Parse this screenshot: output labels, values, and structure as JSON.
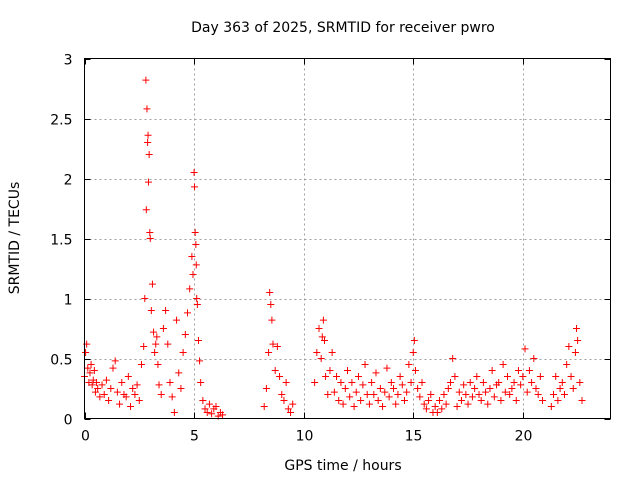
{
  "chart_data": {
    "type": "scatter",
    "title": "Day 363 of 2025, SRMTID for receiver pwro",
    "xlabel": "GPS time / hours",
    "ylabel": "SRMTID / TECUs",
    "xlim": [
      0,
      24
    ],
    "ylim": [
      0,
      3
    ],
    "xticks": [
      0,
      5,
      10,
      15,
      20
    ],
    "xtick_labels": [
      "0",
      "5",
      "10",
      "15",
      "20"
    ],
    "yticks": [
      0,
      0.5,
      1,
      1.5,
      2,
      2.5,
      3
    ],
    "ytick_labels": [
      "0",
      "0.5",
      "1",
      "1.5",
      "2",
      "2.5",
      "3"
    ],
    "grid": true,
    "marker": "+",
    "color": "#ff0000",
    "series": [
      {
        "name": "SRMTID",
        "x": [
          0.0,
          0.05,
          0.1,
          0.15,
          0.2,
          0.25,
          0.3,
          0.35,
          0.4,
          0.45,
          0.5,
          0.55,
          0.6,
          0.7,
          0.8,
          0.9,
          1.0,
          1.1,
          1.2,
          1.3,
          1.4,
          1.5,
          1.6,
          1.7,
          1.8,
          1.9,
          2.0,
          2.1,
          2.2,
          2.3,
          2.4,
          2.5,
          2.6,
          2.7,
          2.75,
          2.8,
          2.82,
          2.85,
          2.88,
          2.9,
          2.92,
          2.95,
          2.98,
          3.0,
          3.05,
          3.1,
          3.15,
          3.2,
          3.25,
          3.3,
          3.35,
          3.4,
          3.5,
          3.6,
          3.7,
          3.8,
          3.9,
          4.0,
          4.1,
          4.2,
          4.3,
          4.4,
          4.5,
          4.6,
          4.7,
          4.8,
          4.9,
          4.95,
          5.0,
          5.02,
          5.05,
          5.08,
          5.1,
          5.12,
          5.15,
          5.2,
          5.25,
          5.3,
          5.4,
          5.5,
          5.6,
          5.7,
          5.8,
          5.9,
          6.0,
          6.1,
          6.2,
          6.3,
          8.2,
          8.3,
          8.4,
          8.45,
          8.5,
          8.55,
          8.6,
          8.7,
          8.8,
          8.9,
          9.0,
          9.1,
          9.2,
          9.3,
          9.4,
          9.5,
          10.5,
          10.6,
          10.7,
          10.8,
          10.85,
          10.9,
          10.95,
          11.0,
          11.1,
          11.2,
          11.3,
          11.4,
          11.5,
          11.6,
          11.7,
          11.8,
          11.9,
          12.0,
          12.1,
          12.2,
          12.3,
          12.4,
          12.5,
          12.6,
          12.7,
          12.8,
          12.9,
          13.0,
          13.1,
          13.2,
          13.3,
          13.4,
          13.5,
          13.6,
          13.7,
          13.8,
          13.9,
          14.0,
          14.1,
          14.2,
          14.3,
          14.4,
          14.5,
          14.6,
          14.7,
          14.8,
          14.9,
          15.0,
          15.05,
          15.1,
          15.2,
          15.3,
          15.4,
          15.5,
          15.6,
          15.7,
          15.8,
          15.9,
          16.0,
          16.1,
          16.2,
          16.3,
          16.4,
          16.5,
          16.6,
          16.7,
          16.8,
          16.9,
          17.0,
          17.1,
          17.2,
          17.3,
          17.4,
          17.5,
          17.6,
          17.7,
          17.8,
          17.9,
          18.0,
          18.1,
          18.2,
          18.3,
          18.4,
          18.5,
          18.6,
          18.7,
          18.8,
          18.9,
          19.0,
          19.1,
          19.2,
          19.3,
          19.4,
          19.5,
          19.6,
          19.7,
          19.8,
          19.9,
          20.0,
          20.1,
          20.2,
          20.3,
          20.4,
          20.5,
          20.6,
          20.7,
          20.8,
          20.9,
          21.3,
          21.4,
          21.5,
          21.6,
          21.7,
          21.8,
          21.9,
          22.0,
          22.1,
          22.2,
          22.3,
          22.4,
          22.45,
          22.5,
          22.6,
          22.7
        ],
        "y": [
          0.35,
          0.55,
          0.62,
          0.42,
          0.3,
          0.38,
          0.45,
          0.28,
          0.32,
          0.4,
          0.22,
          0.3,
          0.25,
          0.18,
          0.28,
          0.2,
          0.32,
          0.15,
          0.25,
          0.42,
          0.48,
          0.22,
          0.12,
          0.3,
          0.2,
          0.18,
          0.35,
          0.1,
          0.25,
          0.2,
          0.28,
          0.15,
          0.45,
          0.6,
          1.0,
          2.82,
          1.74,
          2.58,
          2.3,
          2.36,
          1.97,
          2.2,
          1.55,
          1.5,
          0.9,
          1.12,
          0.72,
          0.55,
          0.62,
          0.68,
          0.45,
          0.28,
          0.2,
          0.75,
          0.9,
          0.62,
          0.3,
          0.18,
          0.05,
          0.82,
          0.38,
          0.25,
          0.55,
          0.7,
          0.88,
          1.08,
          1.35,
          1.2,
          2.05,
          1.93,
          1.55,
          1.45,
          1.28,
          1.0,
          0.95,
          0.65,
          0.48,
          0.3,
          0.15,
          0.08,
          0.05,
          0.12,
          0.04,
          0.08,
          0.1,
          0.02,
          0.05,
          0.03,
          0.1,
          0.25,
          0.55,
          1.05,
          0.95,
          0.82,
          0.62,
          0.4,
          0.6,
          0.35,
          0.2,
          0.15,
          0.3,
          0.08,
          0.05,
          0.12,
          0.3,
          0.55,
          0.75,
          0.5,
          0.68,
          0.82,
          0.65,
          0.35,
          0.2,
          0.4,
          0.55,
          0.22,
          0.35,
          0.15,
          0.3,
          0.12,
          0.25,
          0.4,
          0.18,
          0.3,
          0.1,
          0.22,
          0.35,
          0.15,
          0.28,
          0.45,
          0.2,
          0.12,
          0.3,
          0.2,
          0.38,
          0.15,
          0.25,
          0.1,
          0.22,
          0.42,
          0.18,
          0.3,
          0.25,
          0.12,
          0.2,
          0.35,
          0.28,
          0.15,
          0.22,
          0.45,
          0.3,
          0.55,
          0.65,
          0.4,
          0.25,
          0.18,
          0.3,
          0.12,
          0.08,
          0.15,
          0.2,
          0.05,
          0.1,
          0.05,
          0.15,
          0.08,
          0.2,
          0.12,
          0.25,
          0.3,
          0.5,
          0.35,
          0.1,
          0.22,
          0.15,
          0.28,
          0.2,
          0.12,
          0.3,
          0.18,
          0.25,
          0.35,
          0.2,
          0.15,
          0.3,
          0.22,
          0.12,
          0.25,
          0.4,
          0.18,
          0.28,
          0.3,
          0.15,
          0.45,
          0.22,
          0.35,
          0.2,
          0.25,
          0.3,
          0.15,
          0.4,
          0.28,
          0.35,
          0.58,
          0.22,
          0.4,
          0.3,
          0.5,
          0.25,
          0.2,
          0.35,
          0.15,
          0.1,
          0.2,
          0.35,
          0.15,
          0.25,
          0.3,
          0.2,
          0.45,
          0.6,
          0.35,
          0.25,
          0.55,
          0.75,
          0.65,
          0.3,
          0.15
        ]
      }
    ]
  }
}
